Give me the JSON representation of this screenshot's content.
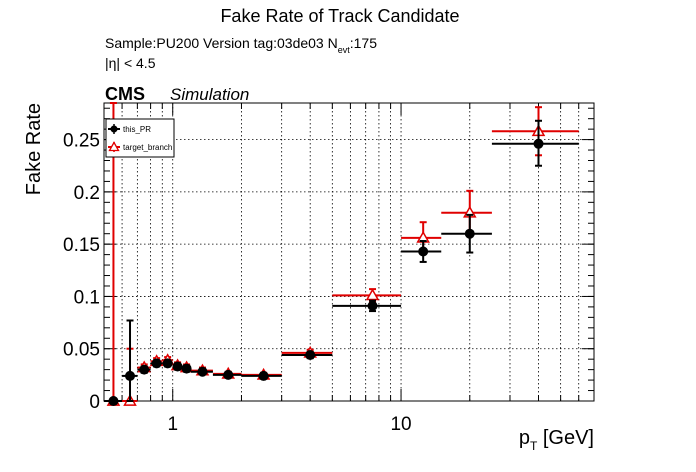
{
  "chart_data": {
    "type": "scatter",
    "title": "Fake Rate of Track Candidate",
    "sample_prefix": "Sample:PU200   Version tag:03de03  N",
    "sample_sub": "evt",
    "sample_suffix": ":175",
    "eta_label": "|η| < 4.5",
    "cms_label": "CMS",
    "sim_label": "Simulation",
    "ylabel": "Fake Rate",
    "xlabel_p": "p",
    "xlabel_sub": "T",
    "xlabel_unit": " [GeV]",
    "xscale": "log",
    "xlim": [
      0.5,
      70
    ],
    "ylim": [
      0,
      0.285
    ],
    "yticks": [
      0,
      0.05,
      0.1,
      0.15,
      0.2,
      0.25
    ],
    "ytick_labels": [
      "0",
      "0.05",
      "0.1",
      "0.15",
      "0.2",
      "0.25"
    ],
    "xticks": [
      1,
      10
    ],
    "xtick_labels": [
      "1",
      "10"
    ],
    "grid": true,
    "legend_position": "top-left",
    "series": [
      {
        "name": "this_PR",
        "color": "#000000",
        "marker": "filled-circle",
        "points": [
          {
            "x": 0.55,
            "xlo": 0.5,
            "xhi": 0.6,
            "y": 0.0,
            "ylo": 0.0,
            "yhi": 0.0
          },
          {
            "x": 0.65,
            "xlo": 0.6,
            "xhi": 0.7,
            "y": 0.024,
            "ylo": 0.0,
            "yhi": 0.077
          },
          {
            "x": 0.75,
            "xlo": 0.7,
            "xhi": 0.8,
            "y": 0.03,
            "ylo": 0.027,
            "yhi": 0.033
          },
          {
            "x": 0.85,
            "xlo": 0.8,
            "xhi": 0.9,
            "y": 0.036,
            "ylo": 0.033,
            "yhi": 0.039
          },
          {
            "x": 0.95,
            "xlo": 0.9,
            "xhi": 1.0,
            "y": 0.036,
            "ylo": 0.033,
            "yhi": 0.039
          },
          {
            "x": 1.05,
            "xlo": 1.0,
            "xhi": 1.1,
            "y": 0.033,
            "ylo": 0.03,
            "yhi": 0.036
          },
          {
            "x": 1.15,
            "xlo": 1.1,
            "xhi": 1.2,
            "y": 0.031,
            "ylo": 0.028,
            "yhi": 0.034
          },
          {
            "x": 1.35,
            "xlo": 1.2,
            "xhi": 1.5,
            "y": 0.028,
            "ylo": 0.026,
            "yhi": 0.031
          },
          {
            "x": 1.75,
            "xlo": 1.5,
            "xhi": 2.0,
            "y": 0.025,
            "ylo": 0.023,
            "yhi": 0.027
          },
          {
            "x": 2.5,
            "xlo": 2.0,
            "xhi": 3.0,
            "y": 0.024,
            "ylo": 0.022,
            "yhi": 0.026
          },
          {
            "x": 4.0,
            "xlo": 3.0,
            "xhi": 5.0,
            "y": 0.044,
            "ylo": 0.041,
            "yhi": 0.047
          },
          {
            "x": 7.5,
            "xlo": 5.0,
            "xhi": 10.0,
            "y": 0.091,
            "ylo": 0.086,
            "yhi": 0.096
          },
          {
            "x": 12.5,
            "xlo": 10.0,
            "xhi": 15.0,
            "y": 0.143,
            "ylo": 0.133,
            "yhi": 0.153
          },
          {
            "x": 20.0,
            "xlo": 15.0,
            "xhi": 25.0,
            "y": 0.16,
            "ylo": 0.142,
            "yhi": 0.178
          },
          {
            "x": 40.0,
            "xlo": 25.0,
            "xhi": 60.0,
            "y": 0.246,
            "ylo": 0.225,
            "yhi": 0.268
          }
        ]
      },
      {
        "name": "target_branch",
        "color": "#e00000",
        "marker": "open-triangle",
        "points": [
          {
            "x": 0.55,
            "xlo": 0.5,
            "xhi": 0.6,
            "y": 0.0,
            "ylo": 0.0,
            "yhi": 0.285
          },
          {
            "x": 0.65,
            "xlo": 0.6,
            "xhi": 0.7,
            "y": 0.0,
            "ylo": 0.0,
            "yhi": 0.05
          },
          {
            "x": 0.75,
            "xlo": 0.7,
            "xhi": 0.8,
            "y": 0.032,
            "ylo": 0.029,
            "yhi": 0.035
          },
          {
            "x": 0.85,
            "xlo": 0.8,
            "xhi": 0.9,
            "y": 0.038,
            "ylo": 0.035,
            "yhi": 0.041
          },
          {
            "x": 0.95,
            "xlo": 0.9,
            "xhi": 1.0,
            "y": 0.039,
            "ylo": 0.036,
            "yhi": 0.042
          },
          {
            "x": 1.05,
            "xlo": 1.0,
            "xhi": 1.1,
            "y": 0.034,
            "ylo": 0.031,
            "yhi": 0.037
          },
          {
            "x": 1.15,
            "xlo": 1.1,
            "xhi": 1.2,
            "y": 0.032,
            "ylo": 0.029,
            "yhi": 0.035
          },
          {
            "x": 1.35,
            "xlo": 1.2,
            "xhi": 1.5,
            "y": 0.029,
            "ylo": 0.027,
            "yhi": 0.032
          },
          {
            "x": 1.75,
            "xlo": 1.5,
            "xhi": 2.0,
            "y": 0.026,
            "ylo": 0.024,
            "yhi": 0.028
          },
          {
            "x": 2.5,
            "xlo": 2.0,
            "xhi": 3.0,
            "y": 0.025,
            "ylo": 0.023,
            "yhi": 0.027
          },
          {
            "x": 4.0,
            "xlo": 3.0,
            "xhi": 5.0,
            "y": 0.046,
            "ylo": 0.043,
            "yhi": 0.049
          },
          {
            "x": 7.5,
            "xlo": 5.0,
            "xhi": 10.0,
            "y": 0.101,
            "ylo": 0.095,
            "yhi": 0.107
          },
          {
            "x": 12.5,
            "xlo": 10.0,
            "xhi": 15.0,
            "y": 0.156,
            "ylo": 0.141,
            "yhi": 0.171
          },
          {
            "x": 20.0,
            "xlo": 15.0,
            "xhi": 25.0,
            "y": 0.18,
            "ylo": 0.16,
            "yhi": 0.201
          },
          {
            "x": 40.0,
            "xlo": 25.0,
            "xhi": 60.0,
            "y": 0.258,
            "ylo": 0.235,
            "yhi": 0.281
          }
        ]
      }
    ]
  }
}
